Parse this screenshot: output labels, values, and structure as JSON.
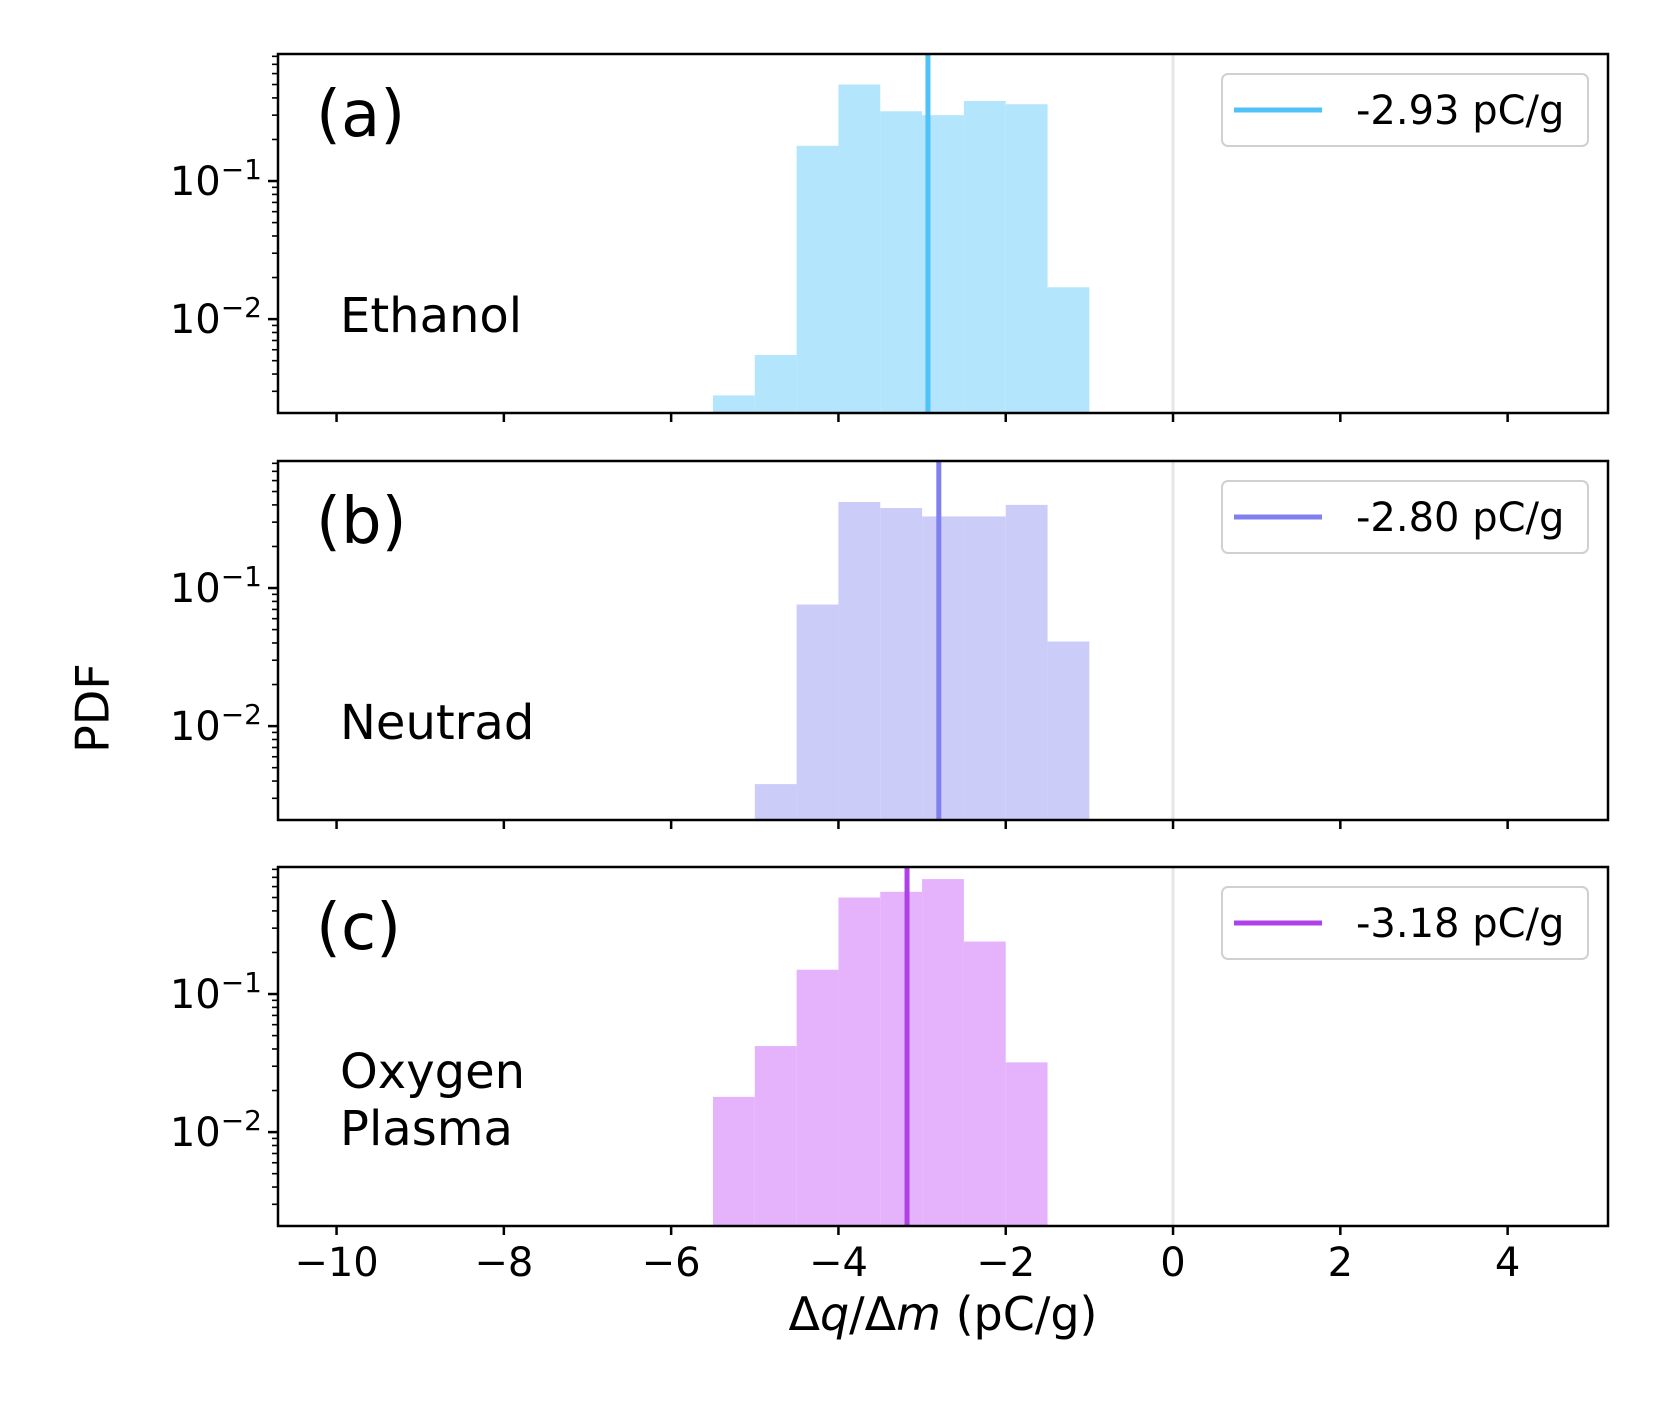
{
  "chart_data": [
    {
      "type": "bar",
      "panel": "(a)",
      "name_lines": [
        "Ethanol"
      ],
      "color": "#4fc3f7",
      "fill": "#b3e5fc",
      "mean": -2.93,
      "legend": "-2.93 pC/g",
      "bin_edges": [
        -5.5,
        -5.0,
        -4.5,
        -4.0,
        -3.5,
        -3.0,
        -2.5,
        -2.0,
        -1.5,
        -1.0
      ],
      "values": [
        0.0028,
        0.0055,
        0.18,
        0.5,
        0.32,
        0.3,
        0.38,
        0.36,
        0.017
      ]
    },
    {
      "type": "bar",
      "panel": "(b)",
      "name_lines": [
        "Neutrad"
      ],
      "color": "#8080f0",
      "fill": "#ccccf8",
      "mean": -2.8,
      "legend": "-2.80 pC/g",
      "bin_edges": [
        -5.0,
        -4.5,
        -4.0,
        -3.5,
        -3.0,
        -2.5,
        -2.0,
        -1.5,
        -1.0
      ],
      "values": [
        0.0038,
        0.076,
        0.42,
        0.38,
        0.33,
        0.33,
        0.4,
        0.041
      ]
    },
    {
      "type": "bar",
      "panel": "(c)",
      "name_lines": [
        "Oxygen",
        "Plasma"
      ],
      "color": "#b040e8",
      "fill": "#e5b3fb",
      "mean": -3.18,
      "legend": "-3.18 pC/g",
      "bin_edges": [
        -5.5,
        -5.0,
        -4.5,
        -4.0,
        -3.5,
        -3.0,
        -2.5,
        -2.0,
        -1.5
      ],
      "values": [
        0.018,
        0.042,
        0.15,
        0.5,
        0.55,
        0.68,
        0.24,
        0.032
      ]
    }
  ],
  "axes": {
    "xlabel_italic_q": "q",
    "xlabel_italic_m": "m",
    "xlabel_delta": "Δ",
    "xlabel_slash": "/",
    "xlabel_units": " (pC/g)",
    "ylabel": "PDF",
    "xlim": [
      -10.7,
      5.2
    ],
    "ylim_log10": [
      -2.68,
      -0.08
    ],
    "x_ticks": [
      -10,
      -8,
      -6,
      -4,
      -2,
      0,
      2,
      4
    ],
    "x_tick_labels": [
      "−10",
      "−8",
      "−6",
      "−4",
      "−2",
      "0",
      "2",
      "4"
    ],
    "y_ticks_exp": [
      -1,
      -2
    ],
    "y_tick_base": "10",
    "y_tick_exp_labels": [
      "−1",
      "−2"
    ],
    "zero_line_x": 0,
    "zero_line_color": "#e6e6e6"
  }
}
